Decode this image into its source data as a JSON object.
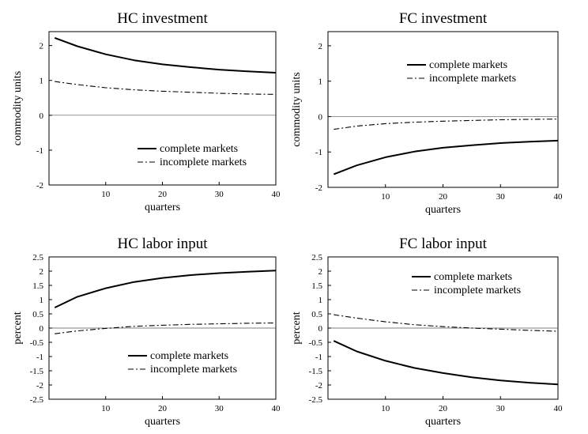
{
  "chart_data": [
    {
      "type": "line",
      "title": "HC investment",
      "xlabel": "quarters",
      "ylabel": "commodity units",
      "xlim": [
        0,
        40
      ],
      "ylim": [
        -2,
        2.4
      ],
      "xticks": [
        "10",
        "20",
        "30",
        "40"
      ],
      "yticks": [
        "-2",
        "-1",
        "0",
        "1",
        "2"
      ],
      "zero_line": true,
      "legend_position": "bottom-right",
      "x": [
        1,
        5,
        10,
        15,
        20,
        25,
        30,
        35,
        40
      ],
      "series": [
        {
          "name": "complete markets",
          "style": "solid",
          "values": [
            2.22,
            1.98,
            1.75,
            1.58,
            1.46,
            1.38,
            1.31,
            1.26,
            1.22
          ]
        },
        {
          "name": "incomplete markets",
          "style": "dash-dot",
          "values": [
            0.97,
            0.88,
            0.79,
            0.73,
            0.69,
            0.66,
            0.63,
            0.61,
            0.6
          ]
        }
      ]
    },
    {
      "type": "line",
      "title": "FC investment",
      "xlabel": "quarters",
      "ylabel": "commodity units",
      "xlim": [
        0,
        40
      ],
      "ylim": [
        -2,
        2.4
      ],
      "xticks": [
        "10",
        "20",
        "30",
        "40"
      ],
      "yticks": [
        "-2",
        "-1",
        "0",
        "1",
        "2"
      ],
      "zero_line": true,
      "legend_position": "top-right",
      "x": [
        1,
        5,
        10,
        15,
        20,
        25,
        30,
        35,
        40
      ],
      "series": [
        {
          "name": "complete markets",
          "style": "solid",
          "values": [
            -1.63,
            -1.38,
            -1.15,
            -0.99,
            -0.88,
            -0.81,
            -0.75,
            -0.71,
            -0.68
          ]
        },
        {
          "name": "incomplete markets",
          "style": "dash-dot",
          "values": [
            -0.36,
            -0.27,
            -0.2,
            -0.16,
            -0.13,
            -0.11,
            -0.09,
            -0.08,
            -0.07
          ]
        }
      ]
    },
    {
      "type": "line",
      "title": "HC labor input",
      "xlabel": "quarters",
      "ylabel": "percent",
      "xlim": [
        0,
        40
      ],
      "ylim": [
        -2.5,
        2.5
      ],
      "xticks": [
        "10",
        "20",
        "30",
        "40"
      ],
      "yticks": [
        "-2.5",
        "-2",
        "-1.5",
        "-1",
        "-0.5",
        "0",
        "0.5",
        "1",
        "1.5",
        "2",
        "2.5"
      ],
      "zero_line": true,
      "legend_position": "bottom-right",
      "x": [
        1,
        5,
        10,
        15,
        20,
        25,
        30,
        35,
        40
      ],
      "series": [
        {
          "name": "complete markets",
          "style": "solid",
          "values": [
            0.72,
            1.1,
            1.4,
            1.62,
            1.76,
            1.86,
            1.93,
            1.98,
            2.02
          ]
        },
        {
          "name": "incomplete markets",
          "style": "dash-dot",
          "values": [
            -0.2,
            -0.1,
            -0.01,
            0.06,
            0.1,
            0.13,
            0.15,
            0.17,
            0.18
          ]
        }
      ]
    },
    {
      "type": "line",
      "title": "FC labor input",
      "xlabel": "quarters",
      "ylabel": "percent",
      "xlim": [
        0,
        40
      ],
      "ylim": [
        -2.5,
        2.5
      ],
      "xticks": [
        "10",
        "20",
        "30",
        "40"
      ],
      "yticks": [
        "-2.5",
        "-2",
        "-1.5",
        "-1",
        "-0.5",
        "0",
        "0.5",
        "1",
        "1.5",
        "2",
        "2.5"
      ],
      "zero_line": true,
      "legend_position": "top-right",
      "x": [
        1,
        5,
        10,
        15,
        20,
        25,
        30,
        35,
        40
      ],
      "series": [
        {
          "name": "complete markets",
          "style": "solid",
          "values": [
            -0.45,
            -0.82,
            -1.15,
            -1.4,
            -1.58,
            -1.73,
            -1.84,
            -1.92,
            -1.98
          ]
        },
        {
          "name": "incomplete markets",
          "style": "dash-dot",
          "values": [
            0.47,
            0.35,
            0.22,
            0.12,
            0.05,
            0.0,
            -0.04,
            -0.08,
            -0.11
          ]
        }
      ]
    }
  ]
}
